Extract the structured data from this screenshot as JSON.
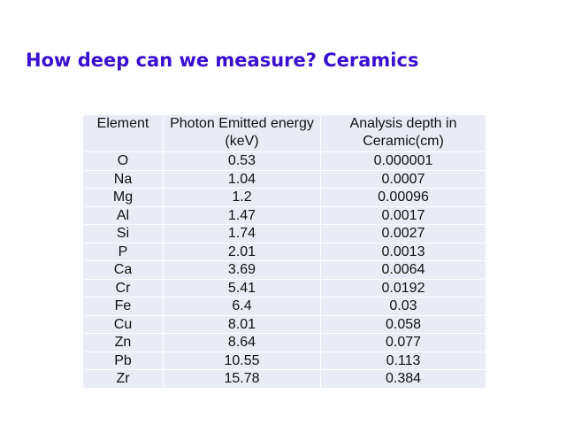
{
  "title": "How deep can we measure? Ceramics",
  "table": {
    "headers": [
      "Element",
      "Photon Emitted energy (keV)",
      "Analysis depth in Ceramic(cm)"
    ],
    "rows": [
      [
        "O",
        "0.53",
        "0.000001"
      ],
      [
        "Na",
        "1.04",
        "0.0007"
      ],
      [
        "Mg",
        "1.2",
        "0.00096"
      ],
      [
        "Al",
        "1.47",
        "0.0017"
      ],
      [
        "Si",
        "1.74",
        "0.0027"
      ],
      [
        "P",
        "2.01",
        "0.0013"
      ],
      [
        "Ca",
        "3.69",
        "0.0064"
      ],
      [
        "Cr",
        "5.41",
        "0.0192"
      ],
      [
        "Fe",
        "6.4",
        "0.03"
      ],
      [
        "Cu",
        "8.01",
        "0.058"
      ],
      [
        "Zn",
        "8.64",
        "0.077"
      ],
      [
        "Pb",
        "10.55",
        "0.113"
      ],
      [
        "Zr",
        "15.78",
        "0.384"
      ]
    ]
  },
  "colors": {
    "title": "#3a0fd0",
    "cell": "#e9ecf4"
  }
}
